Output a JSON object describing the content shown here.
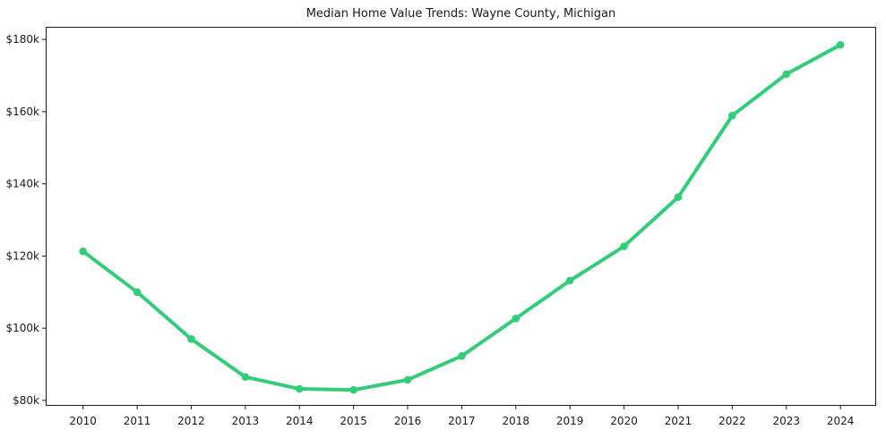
{
  "figure": {
    "background": "#ffffff"
  },
  "chart_data": {
    "type": "line",
    "title": "Median Home Value Trends: Wayne County, Michigan",
    "x": [
      2010,
      2011,
      2012,
      2013,
      2014,
      2015,
      2016,
      2017,
      2018,
      2019,
      2020,
      2021,
      2022,
      2023,
      2024
    ],
    "xticks": [
      "2010",
      "2011",
      "2012",
      "2013",
      "2014",
      "2015",
      "2016",
      "2017",
      "2018",
      "2019",
      "2020",
      "2021",
      "2022",
      "2023",
      "2024"
    ],
    "values": [
      121300,
      110000,
      97000,
      86500,
      83200,
      82900,
      85700,
      92300,
      102700,
      113200,
      122700,
      136300,
      158900,
      170400,
      178500
    ],
    "yticks": {
      "values": [
        80000,
        100000,
        120000,
        140000,
        160000,
        180000
      ],
      "labels": [
        "$80k",
        "$100k",
        "$120k",
        "$140k",
        "$160k",
        "$180k"
      ]
    },
    "xlim": [
      2009.31,
      2024.66
    ],
    "ylim": [
      78500,
      183500
    ],
    "grid": false,
    "line_color": "#33cd7a",
    "marker": "circle",
    "text_color": "#1a1a1a",
    "axis_color": "#1a1a1a"
  }
}
